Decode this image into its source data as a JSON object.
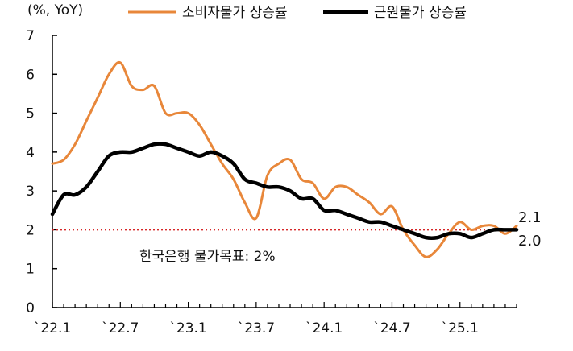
{
  "chart_data": {
    "type": "line",
    "unit_label": "(%, YoY)",
    "ylim": [
      0,
      7
    ],
    "yticks": [
      0,
      1,
      2,
      3,
      4,
      5,
      6,
      7
    ],
    "x_tick_labels": [
      "`22.1",
      "`22.7",
      "`23.1",
      "`23.7",
      "`24.1",
      "`24.7",
      "`25.1"
    ],
    "legend_position": "top",
    "grid": false,
    "series": [
      {
        "name": "소비자물가 상승률",
        "color": "#E8873A",
        "x": [
          "2022-01",
          "2022-02",
          "2022-03",
          "2022-04",
          "2022-05",
          "2022-06",
          "2022-07",
          "2022-08",
          "2022-09",
          "2022-10",
          "2022-11",
          "2022-12",
          "2023-01",
          "2023-02",
          "2023-03",
          "2023-04",
          "2023-05",
          "2023-06",
          "2023-07",
          "2023-08",
          "2023-09",
          "2023-10",
          "2023-11",
          "2023-12",
          "2024-01",
          "2024-02",
          "2024-03",
          "2024-04",
          "2024-05",
          "2024-06",
          "2024-07",
          "2024-08",
          "2024-09",
          "2024-10",
          "2024-11",
          "2024-12",
          "2025-01",
          "2025-02",
          "2025-03",
          "2025-04",
          "2025-05",
          "2025-06"
        ],
        "values": [
          3.7,
          3.8,
          4.2,
          4.8,
          5.4,
          6.0,
          6.3,
          5.7,
          5.6,
          5.7,
          5.0,
          5.0,
          5.0,
          4.7,
          4.2,
          3.7,
          3.3,
          2.7,
          2.3,
          3.4,
          3.7,
          3.8,
          3.3,
          3.2,
          2.8,
          3.1,
          3.1,
          2.9,
          2.7,
          2.4,
          2.6,
          2.0,
          1.6,
          1.3,
          1.5,
          1.9,
          2.2,
          2.0,
          2.1,
          2.1,
          1.9,
          2.1
        ],
        "end_label": "2.1"
      },
      {
        "name": "근원물가 상승률",
        "color": "#000000",
        "x": [
          "2022-01",
          "2022-02",
          "2022-03",
          "2022-04",
          "2022-05",
          "2022-06",
          "2022-07",
          "2022-08",
          "2022-09",
          "2022-10",
          "2022-11",
          "2022-12",
          "2023-01",
          "2023-02",
          "2023-03",
          "2023-04",
          "2023-05",
          "2023-06",
          "2023-07",
          "2023-08",
          "2023-09",
          "2023-10",
          "2023-11",
          "2023-12",
          "2024-01",
          "2024-02",
          "2024-03",
          "2024-04",
          "2024-05",
          "2024-06",
          "2024-07",
          "2024-08",
          "2024-09",
          "2024-10",
          "2024-11",
          "2024-12",
          "2025-01",
          "2025-02",
          "2025-03",
          "2025-04",
          "2025-05",
          "2025-06"
        ],
        "values": [
          2.4,
          2.9,
          2.9,
          3.1,
          3.5,
          3.9,
          4.0,
          4.0,
          4.1,
          4.2,
          4.2,
          4.1,
          4.0,
          3.9,
          4.0,
          3.9,
          3.7,
          3.3,
          3.2,
          3.1,
          3.1,
          3.0,
          2.8,
          2.8,
          2.5,
          2.5,
          2.4,
          2.3,
          2.2,
          2.2,
          2.1,
          2.0,
          1.9,
          1.8,
          1.8,
          1.9,
          1.9,
          1.8,
          1.9,
          2.0,
          2.0,
          2.0
        ],
        "end_label": "2.0"
      }
    ],
    "reference_line": {
      "value": 2.0,
      "label": "한국은행 물가목표: 2%",
      "color": "#D62728"
    }
  }
}
